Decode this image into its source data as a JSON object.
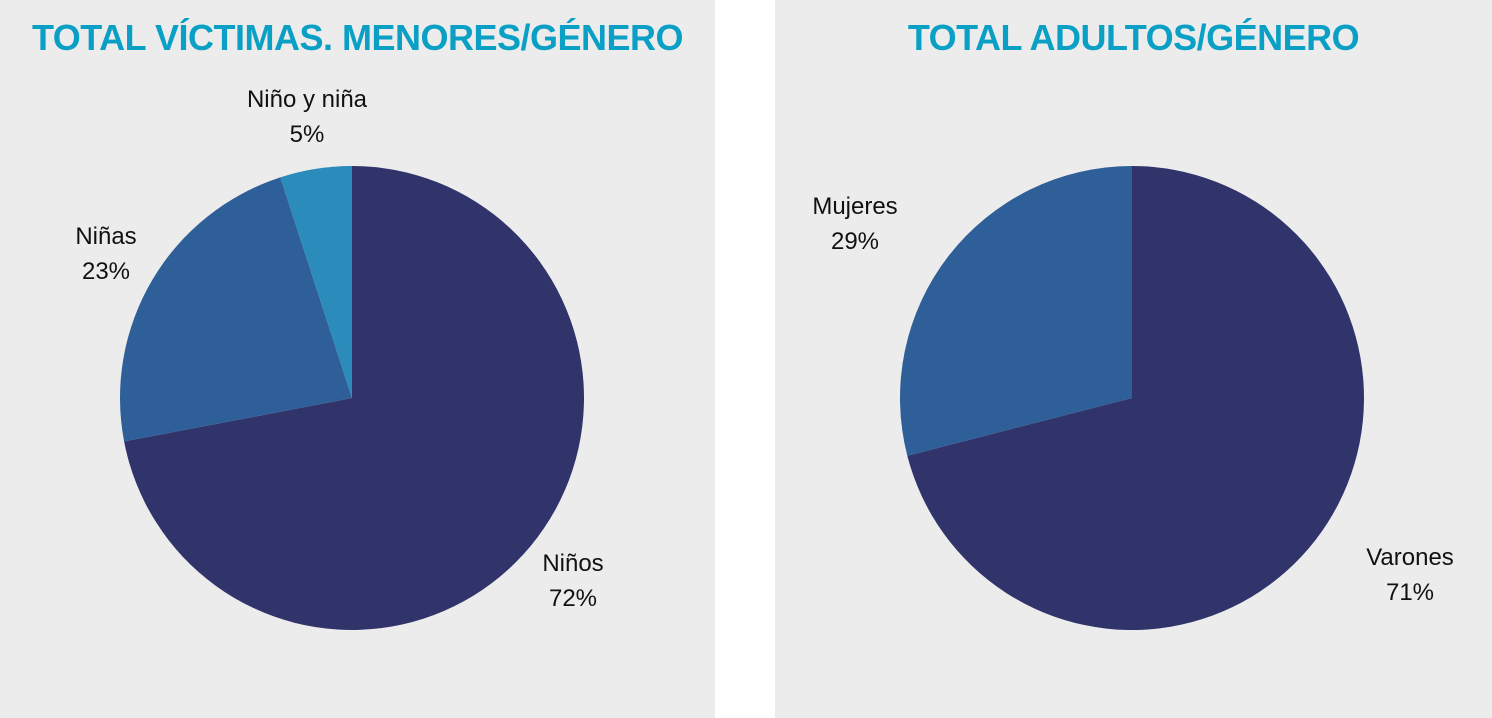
{
  "chart_data": [
    {
      "type": "pie",
      "title": "TOTAL VÍCTIMAS. MENORES/GÉNERO",
      "start": "top",
      "direction": "clockwise",
      "slices": [
        {
          "label": "Niños",
          "value": 72,
          "value_label": "72%",
          "color": "#30346b"
        },
        {
          "label": "Niñas",
          "value": 23,
          "value_label": "23%",
          "color": "#2e5f98"
        },
        {
          "label": "Niño y niña",
          "value": 5,
          "value_label": "5%",
          "color": "#2b8bbb"
        }
      ]
    },
    {
      "type": "pie",
      "title": "TOTAL ADULTOS/GÉNERO",
      "start": "top",
      "direction": "clockwise",
      "slices": [
        {
          "label": "Varones",
          "value": 71,
          "value_label": "71%",
          "color": "#30346b"
        },
        {
          "label": "Mujeres",
          "value": 29,
          "value_label": "29%",
          "color": "#2e5f98"
        }
      ]
    }
  ]
}
